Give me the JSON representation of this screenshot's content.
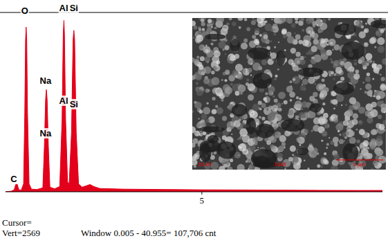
{
  "chart_data": {
    "type": "area",
    "color": "#e3001b",
    "x": [
      0,
      0.15,
      0.22,
      0.26,
      0.28,
      0.3,
      0.34,
      0.4,
      0.46,
      0.49,
      0.51,
      0.525,
      0.54,
      0.56,
      0.6,
      0.66,
      0.8,
      0.95,
      0.99,
      1.02,
      1.04,
      1.06,
      1.09,
      1.13,
      1.25,
      1.38,
      1.44,
      1.47,
      1.487,
      1.5,
      1.53,
      1.58,
      1.62,
      1.68,
      1.72,
      1.74,
      1.76,
      1.8,
      1.86,
      1.95,
      2.05,
      2.15,
      2.25,
      2.4,
      3,
      4,
      5,
      6,
      7,
      8,
      9,
      9.6
    ],
    "values": [
      0,
      10,
      30,
      110,
      125,
      110,
      30,
      25,
      120,
      1200,
      2300,
      2500,
      2300,
      1200,
      120,
      40,
      35,
      60,
      700,
      1400,
      1550,
      1400,
      700,
      70,
      45,
      80,
      1100,
      2400,
      2600,
      2400,
      1100,
      150,
      120,
      900,
      2300,
      2450,
      2300,
      900,
      120,
      70,
      90,
      110,
      80,
      50,
      40,
      35,
      30,
      28,
      25,
      22,
      20,
      20
    ],
    "xlim": [
      0,
      9.6
    ],
    "ylim": [
      0,
      2700
    ],
    "xticks": [
      5
    ],
    "tick_labels": "x",
    "annotations": [
      {
        "text": "C",
        "x": 0.21,
        "y": 147
      },
      {
        "text": "O",
        "x": 0.49,
        "y": 2700
      },
      {
        "text": "Na",
        "x": 1.02,
        "y": 1639
      },
      {
        "text": "Na",
        "x": 1.02,
        "y": 840
      },
      {
        "text": "Al",
        "x": 1.48,
        "y": 2742
      },
      {
        "text": "Al",
        "x": 1.48,
        "y": 1334
      },
      {
        "text": "Si",
        "x": 1.74,
        "y": 2742
      },
      {
        "text": "Si",
        "x": 1.74,
        "y": 1282
      }
    ]
  },
  "inset": {
    "labels": [
      "20 kV",
      "10kX",
      "1 µm"
    ]
  },
  "footer": {
    "cursor": "Cursor=",
    "vert": "Vert=2569",
    "window": "Window 0.005 - 40.955= 107,706 cnt"
  }
}
